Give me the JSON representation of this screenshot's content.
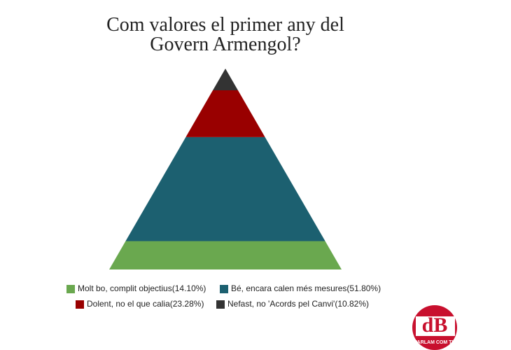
{
  "chart_data": {
    "type": "pyramid",
    "title": [
      "Com valores el primer any del",
      "Govern Armengol?"
    ],
    "categories": [
      "Molt bo, complit objectius(14.10%)",
      "Bé, encara calen més mesures(51.80%)",
      "Dolent, no el que calia(23.28%)",
      "Nefast, no 'Acords pel Canvi'(10.82%)"
    ],
    "values": [
      14.1,
      51.8,
      23.28,
      10.82
    ],
    "colors": [
      "#6aa84f",
      "#1c6070",
      "#990000",
      "#333333"
    ]
  },
  "logo": {
    "text": "dB",
    "tagline": "PARLAM COM TU"
  }
}
